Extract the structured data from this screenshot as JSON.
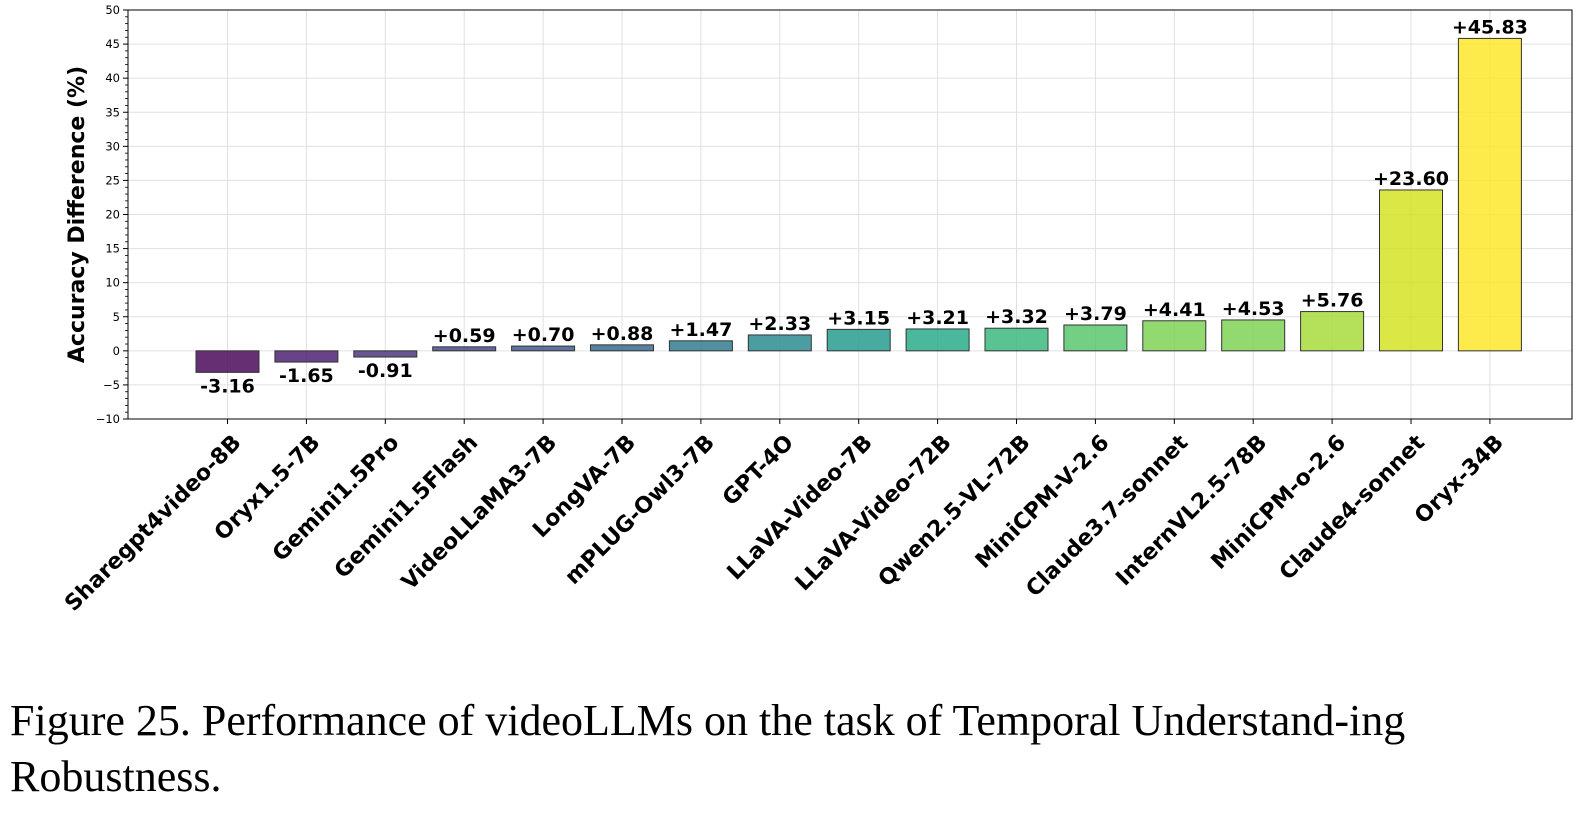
{
  "chart_data": {
    "type": "bar",
    "ylabel": "Accuracy Difference (%)",
    "xlabel": "",
    "ylim": [
      -10,
      50
    ],
    "yticks": [
      -10,
      -5,
      0,
      5,
      10,
      15,
      20,
      25,
      30,
      35,
      40,
      45,
      50
    ],
    "ytick_labels": [
      "−10",
      "−5",
      "0",
      "5",
      "10",
      "15",
      "20",
      "25",
      "30",
      "35",
      "40",
      "45",
      "50"
    ],
    "grid": true,
    "categories": [
      "Sharegpt4video-8B",
      "Oryx1.5-7B",
      "Gemini1.5Pro",
      "Gemini1.5Flash",
      "VideoLLaMA3-7B",
      "LongVA-7B",
      "mPLUG-Owl3-7B",
      "GPT-4O",
      "LLaVA-Video-7B",
      "LLaVA-Video-72B",
      "Qwen2.5-VL-72B",
      "MiniCPM-V-2.6",
      "Claude3.7-sonnet",
      "InternVL2.5-78B",
      "MiniCPM-o-2.6",
      "Claude4-sonnet",
      "Oryx-34B"
    ],
    "values": [
      -3.16,
      -1.65,
      -0.91,
      0.59,
      0.7,
      0.88,
      1.47,
      2.33,
      3.15,
      3.21,
      3.32,
      3.79,
      4.41,
      4.53,
      5.76,
      23.6,
      45.83
    ],
    "value_labels": [
      "-3.16",
      "-1.65",
      "-0.91",
      "+0.59",
      "+0.70",
      "+0.88",
      "+1.47",
      "+2.33",
      "+3.15",
      "+3.21",
      "+3.32",
      "+3.79",
      "+4.41",
      "+4.53",
      "+5.76",
      "+23.60",
      "+45.83"
    ],
    "bar_colors": [
      "#440154",
      "#481a6c",
      "#472f7d",
      "#414487",
      "#39568c",
      "#31688e",
      "#2a788e",
      "#23888e",
      "#1f988b",
      "#22a884",
      "#35b779",
      "#54c568",
      "#7ad151",
      "#7ad151",
      "#a5db36",
      "#d2e21b",
      "#fde725"
    ]
  },
  "caption": "Figure 25. Performance of videoLLMs on the task of Temporal Understand-ing Robustness."
}
